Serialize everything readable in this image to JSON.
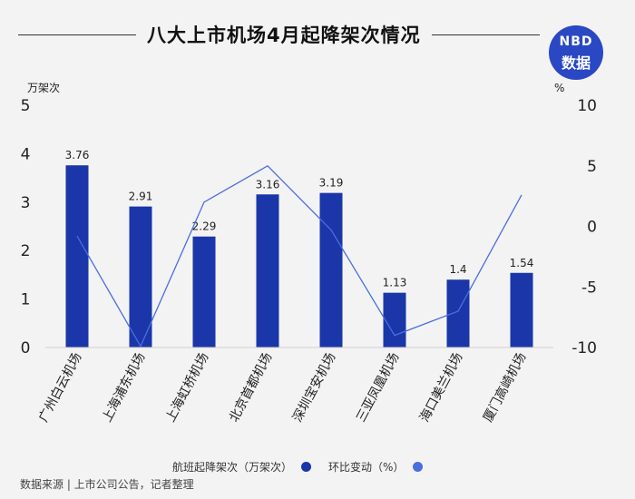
{
  "title": "八大上市机场4月起降架次情况",
  "logo": {
    "line1": "NBD",
    "line2": "数据"
  },
  "source": "数据来源 | 上市公司公告，记者整理",
  "colors": {
    "bar": "#1a36a8",
    "line": "#4a6ee0",
    "accent": "#2a47c4"
  },
  "chart_data": {
    "type": "bar",
    "categories": [
      "广州白云机场",
      "上海浦东机场",
      "上海虹桥机场",
      "北京首都机场",
      "深圳宝安机场",
      "三亚凤凰机场",
      "海口美兰机场",
      "厦门高崎机场"
    ],
    "series": [
      {
        "name": "航班起降架次（万架次）",
        "type": "bar",
        "axis": "left",
        "values": [
          3.76,
          2.91,
          2.29,
          3.16,
          3.19,
          1.13,
          1.4,
          1.54
        ]
      },
      {
        "name": "环比变动（%）",
        "type": "line",
        "axis": "right",
        "values": [
          -0.8,
          -9.9,
          2.0,
          5.0,
          -0.3,
          -9.0,
          -7.0,
          2.6
        ]
      }
    ],
    "ylabel_left": "万架次",
    "ylabel_right": "%",
    "ylim_left": [
      0,
      5
    ],
    "ylim_right": [
      -10,
      10
    ],
    "yticks_left": [
      "0",
      "1",
      "2",
      "3",
      "4",
      "5"
    ],
    "yticks_right": [
      "-10",
      "-5",
      "0",
      "5",
      "10"
    ],
    "value_labels": [
      "3.76",
      "2.91",
      "2.29",
      "3.16",
      "3.19",
      "1.13",
      "1.4",
      "1.54"
    ],
    "grid": false,
    "legend_position": "bottom"
  }
}
